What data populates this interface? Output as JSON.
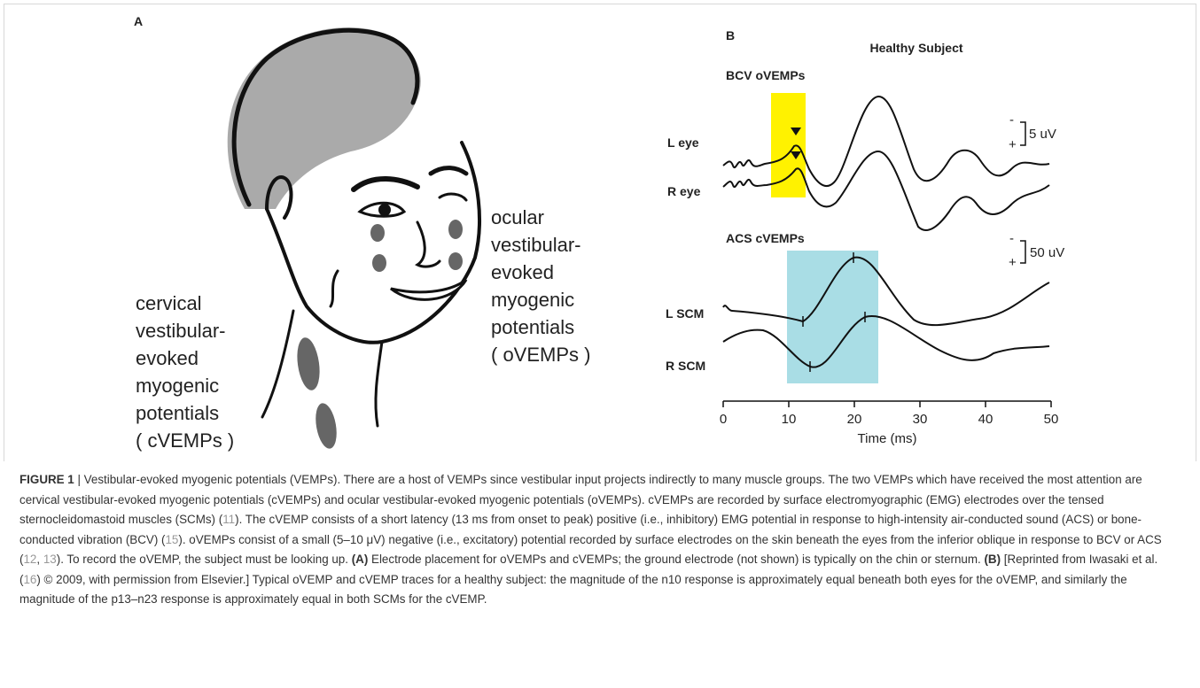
{
  "panel_a": {
    "label": "A",
    "cervical_lines": [
      "cervical",
      "vestibular-",
      "evoked",
      "myogenic",
      "potentials",
      "( cVEMPs )"
    ],
    "ocular_lines": [
      "ocular",
      "vestibular-",
      "evoked",
      "myogenic",
      "potentials",
      "( oVEMPs )"
    ]
  },
  "panel_b": {
    "label": "B",
    "title": "Healthy Subject",
    "bcv_title": "BCV oVEMPs",
    "acs_title": "ACS cVEMPs",
    "trace_labels": [
      "L eye",
      "R eye",
      "L SCM",
      "R SCM"
    ],
    "scale_top": "5 uV",
    "scale_bottom": "50 uV",
    "scale_minus": "-",
    "scale_plus": "+",
    "x_ticks": [
      "0",
      "10",
      "20",
      "30",
      "40",
      "50"
    ],
    "x_label": "Time (ms)"
  },
  "caption": {
    "segments": [
      "FIGURE 1",
      " | Vestibular-evoked myogenic potentials (VEMPs). There are a host of VEMPs since vestibular input projects indirectly to many muscle groups. The two VEMPs which have received the most attention are cervical vestibular-evoked myogenic potentials (cVEMPs) and ocular vestibular-evoked myogenic potentials (oVEMPs). cVEMPs are recorded by surface electromyographic (EMG) electrodes over the tensed sternocleidomastoid muscles (SCMs) (",
      "11",
      "). The cVEMP consists of a short latency (13 ms from onset to peak) positive (i.e., inhibitory) EMG potential in response to high-intensity air-conducted sound (ACS) or bone-conducted vibration (BCV) (",
      "15",
      "). oVEMPs consist of a small (5–10 μV) negative (i.e., excitatory) potential recorded by surface electrodes on the skin beneath the eyes from the inferior oblique in response to BCV or ACS (",
      "12",
      ", ",
      "13",
      "). To record the oVEMP, the subject must be looking up. ",
      "(A)",
      " Electrode placement for oVEMPs and cVEMPs; the ground electrode (not shown) is typically on the chin or sternum. ",
      "(B)",
      " [Reprinted from Iwasaki et al. (",
      "16",
      ") © 2009, with permission from Elsevier.] Typical oVEMP and cVEMP traces for a healthy subject: the magnitude of the n10 response is approximately equal beneath both eyes for the oVEMP, and similarly the magnitude of the p13–n23 response is approximately equal in both SCMs for the cVEMP."
    ]
  }
}
